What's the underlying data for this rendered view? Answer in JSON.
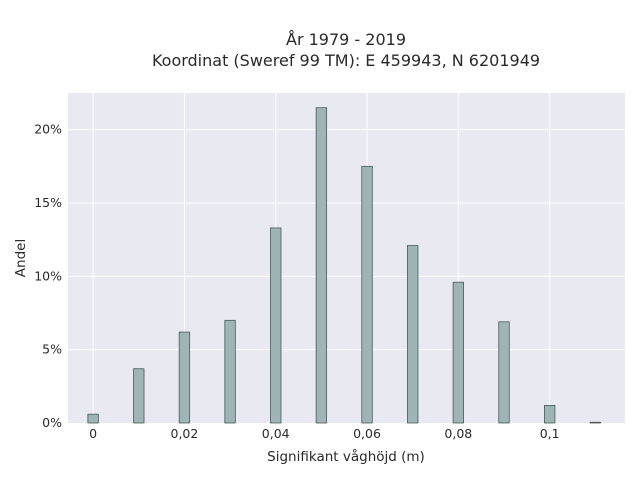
{
  "chart_data": {
    "type": "bar",
    "title_lines": [
      "År 1979 - 2019",
      "Koordinat (Sweref 99 TM): E 459943, N 6201949"
    ],
    "xlabel": "Signifikant våghöjd (m)",
    "ylabel": "Andel",
    "x": [
      0,
      0.01,
      0.02,
      0.03,
      0.04,
      0.05,
      0.06,
      0.07,
      0.08,
      0.09,
      0.1,
      0.11
    ],
    "values": [
      0.6,
      3.7,
      6.2,
      7.0,
      13.3,
      21.5,
      17.5,
      12.1,
      9.6,
      6.9,
      1.2,
      0.05
    ],
    "bar_width": 0.0023,
    "xlim": [
      -0.0055,
      0.1165
    ],
    "ylim": [
      0,
      22.5
    ],
    "xticks": [
      0,
      0.02,
      0.04,
      0.06,
      0.08,
      0.1
    ],
    "xtick_labels": [
      "0",
      "0,02",
      "0,04",
      "0,06",
      "0,08",
      "0,1"
    ],
    "yticks": [
      0,
      5,
      10,
      15,
      20
    ],
    "ytick_labels": [
      "0%",
      "5%",
      "10%",
      "15%",
      "20%"
    ],
    "grid": true,
    "colors": {
      "bar_fill": "#9fb5b5",
      "bar_stroke": "#4a5a5a",
      "plot_bg": "#e9e9f1",
      "grid": "#ffffff"
    }
  }
}
